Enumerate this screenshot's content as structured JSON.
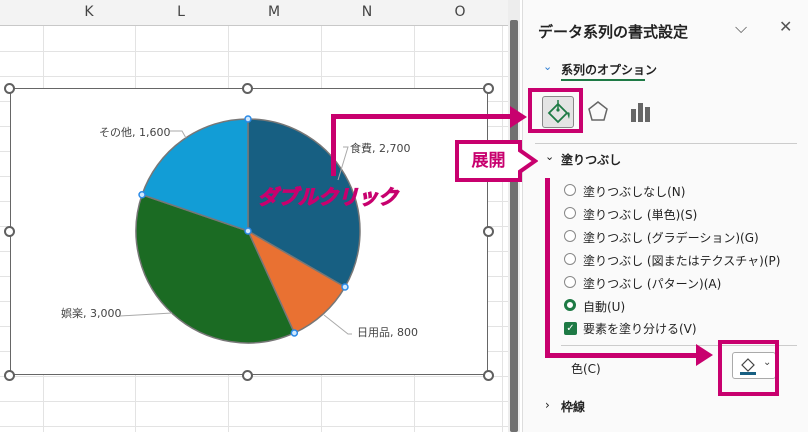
{
  "sheet": {
    "columns": [
      "K",
      "L",
      "M",
      "N",
      "O"
    ]
  },
  "chart": {
    "type": "pie",
    "slices": [
      {
        "label": "食費, 2,700",
        "name": "食費",
        "value": 2700,
        "color": "#175f82"
      },
      {
        "label": "日用品, 800",
        "name": "日用品",
        "value": 800,
        "color": "#e97132"
      },
      {
        "label": "娯楽, 3,000",
        "name": "娯楽",
        "value": 3000,
        "color": "#1b6b23"
      },
      {
        "label": "その他, 1,600",
        "name": "その他",
        "value": 1600,
        "color": "#129dd6"
      }
    ]
  },
  "annotations": {
    "double_click": "ダブルクリック",
    "expand": "展開",
    "accent": "#c8006e"
  },
  "panel": {
    "title": "データ系列の書式設定",
    "series_options_tab": "系列のオプション",
    "fill_section": "塗りつぶし",
    "fill_options": [
      {
        "label": "塗りつぶしなし(N)",
        "selected": false
      },
      {
        "label": "塗りつぶし (単色)(S)",
        "selected": false
      },
      {
        "label": "塗りつぶし (グラデーション)(G)",
        "selected": false
      },
      {
        "label": "塗りつぶし (図またはテクスチャ)(P)",
        "selected": false
      },
      {
        "label": "塗りつぶし (パターン)(A)",
        "selected": false
      },
      {
        "label": "自動(U)",
        "selected": true
      }
    ],
    "vary_colors": {
      "label": "要素を塗り分ける(V)",
      "checked": true
    },
    "color_label": "色(C)",
    "border_section": "枠線",
    "accent": "#1e7a45"
  }
}
